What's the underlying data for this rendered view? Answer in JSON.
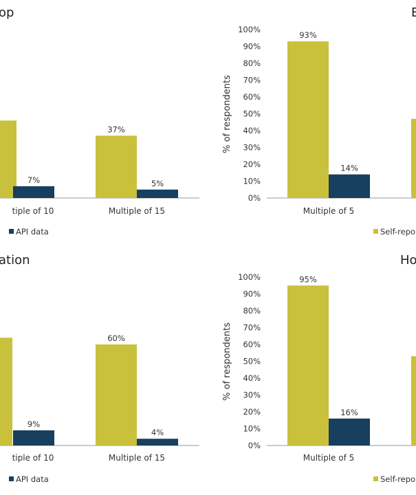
{
  "colors": {
    "self_reported": "#c9c13c",
    "api": "#173f5f",
    "axis": "#9a9a9a"
  },
  "chart_data": [
    {
      "type": "bar",
      "title": "op",
      "categories": [
        "tiple of 10",
        "Multiple of 15"
      ],
      "series": [
        {
          "name": "",
          "values": [
            null,
            37
          ]
        },
        {
          "name": "API data",
          "values": [
            7,
            5
          ]
        }
      ],
      "data_labels": [
        [
          "",
          "37%"
        ],
        [
          "7%",
          "5%"
        ]
      ],
      "legend": [
        "API data"
      ]
    },
    {
      "type": "bar",
      "title": "E",
      "ylabel": "% of respondents",
      "ylim": [
        0,
        100
      ],
      "yticks": [
        "0%",
        "10%",
        "20%",
        "30%",
        "40%",
        "50%",
        "60%",
        "70%",
        "80%",
        "90%",
        "100%"
      ],
      "categories": [
        "Multiple of 5"
      ],
      "series": [
        {
          "name": "Self-repo",
          "values": [
            93
          ]
        },
        {
          "name": "",
          "values": [
            14
          ]
        }
      ],
      "data_labels": [
        [
          "93%"
        ],
        [
          "14%"
        ]
      ],
      "legend": [
        "Self-repo"
      ]
    },
    {
      "type": "bar",
      "title": "ation",
      "categories": [
        "tiple of 10",
        "Multiple of 15"
      ],
      "series": [
        {
          "name": "",
          "values": [
            null,
            60
          ]
        },
        {
          "name": "API data",
          "values": [
            9,
            4
          ]
        }
      ],
      "data_labels": [
        [
          "",
          "60%"
        ],
        [
          "9%",
          "4%"
        ]
      ],
      "legend": [
        "API data"
      ]
    },
    {
      "type": "bar",
      "title": "Ho",
      "ylabel": "% of respondents",
      "ylim": [
        0,
        100
      ],
      "yticks": [
        "0%",
        "10%",
        "20%",
        "30%",
        "40%",
        "50%",
        "60%",
        "70%",
        "80%",
        "90%",
        "100%"
      ],
      "categories": [
        "Multiple of 5"
      ],
      "series": [
        {
          "name": "Self-repo",
          "values": [
            95
          ]
        },
        {
          "name": "",
          "values": [
            16
          ]
        }
      ],
      "data_labels": [
        [
          "95%"
        ],
        [
          "16%"
        ]
      ],
      "legend": [
        "Self-repo"
      ]
    }
  ]
}
